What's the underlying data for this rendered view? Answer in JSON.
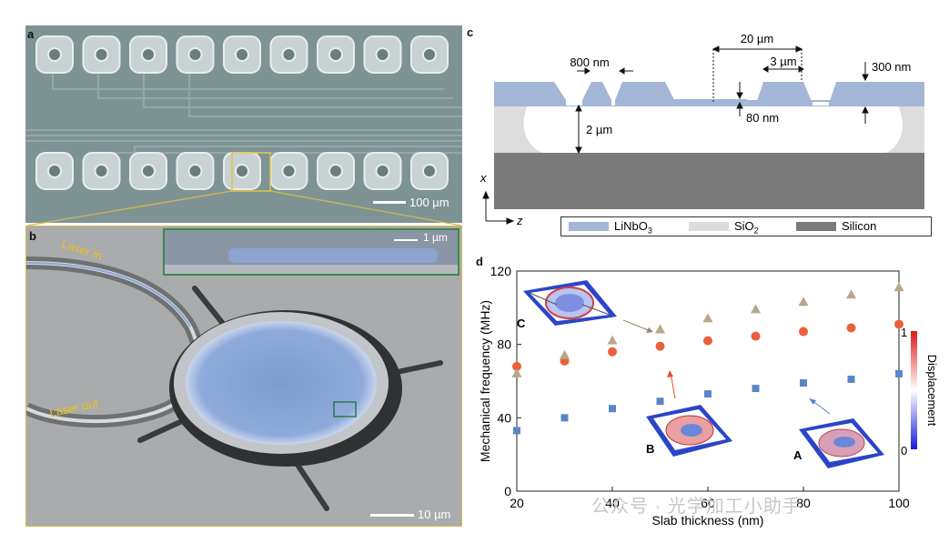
{
  "panels": {
    "a": {
      "label": "a",
      "scalebar": "100 µm"
    },
    "b": {
      "label": "b",
      "laser_in": "Laser in",
      "laser_out": "Laser out",
      "scalebar_inset": "1 µm",
      "scalebar_main": "10 µm"
    },
    "c": {
      "label": "c",
      "dims": {
        "d800": "800 nm",
        "d20": "20 µm",
        "d3": "3 µm",
        "d300": "300 nm",
        "d80": "80 nm",
        "d2": "2 µm"
      },
      "axes": {
        "x": "x",
        "z": "z"
      },
      "legend": {
        "ln": "LiNbO",
        "ln_sub": "3",
        "sio": "SiO",
        "sio_sub": "2",
        "si": "Silicon"
      },
      "colors": {
        "ln": "#a3b6d6",
        "sio": "#dcdcdc",
        "si": "#7a7a7a"
      }
    },
    "d": {
      "label": "d",
      "insets": {
        "A": "A",
        "B": "B",
        "C": "C"
      },
      "colorbar": {
        "label": "Displacement",
        "max": "1",
        "min": "0"
      }
    }
  },
  "chart_data": {
    "type": "scatter",
    "xlabel": "Slab thickness (nm)",
    "ylabel": "Mechanical frequency (MHz)",
    "xlim": [
      20,
      100
    ],
    "ylim": [
      0,
      120
    ],
    "xticks": [
      "20",
      "40",
      "60",
      "80",
      "100"
    ],
    "yticks": [
      "0",
      "40",
      "80",
      "120"
    ],
    "series": [
      {
        "name": "A",
        "marker": "square",
        "color": "#5b86c6",
        "x": [
          20,
          30,
          40,
          50,
          60,
          70,
          80,
          90,
          100
        ],
        "y": [
          33,
          40,
          45,
          49,
          53,
          56,
          59,
          61,
          64
        ]
      },
      {
        "name": "B",
        "marker": "circle",
        "color": "#e8603c",
        "x": [
          20,
          30,
          40,
          50,
          60,
          70,
          80,
          90,
          100
        ],
        "y": [
          68,
          71,
          76,
          79,
          82,
          84.5,
          87,
          89,
          91
        ]
      },
      {
        "name": "C",
        "marker": "triangle",
        "color": "#b7a78c",
        "x": [
          20,
          30,
          40,
          50,
          60,
          70,
          80,
          90,
          100
        ],
        "y": [
          64,
          74,
          82,
          88,
          94,
          99,
          103,
          107,
          111
        ]
      }
    ]
  },
  "watermark": "公众号 · 光学加工小助手"
}
